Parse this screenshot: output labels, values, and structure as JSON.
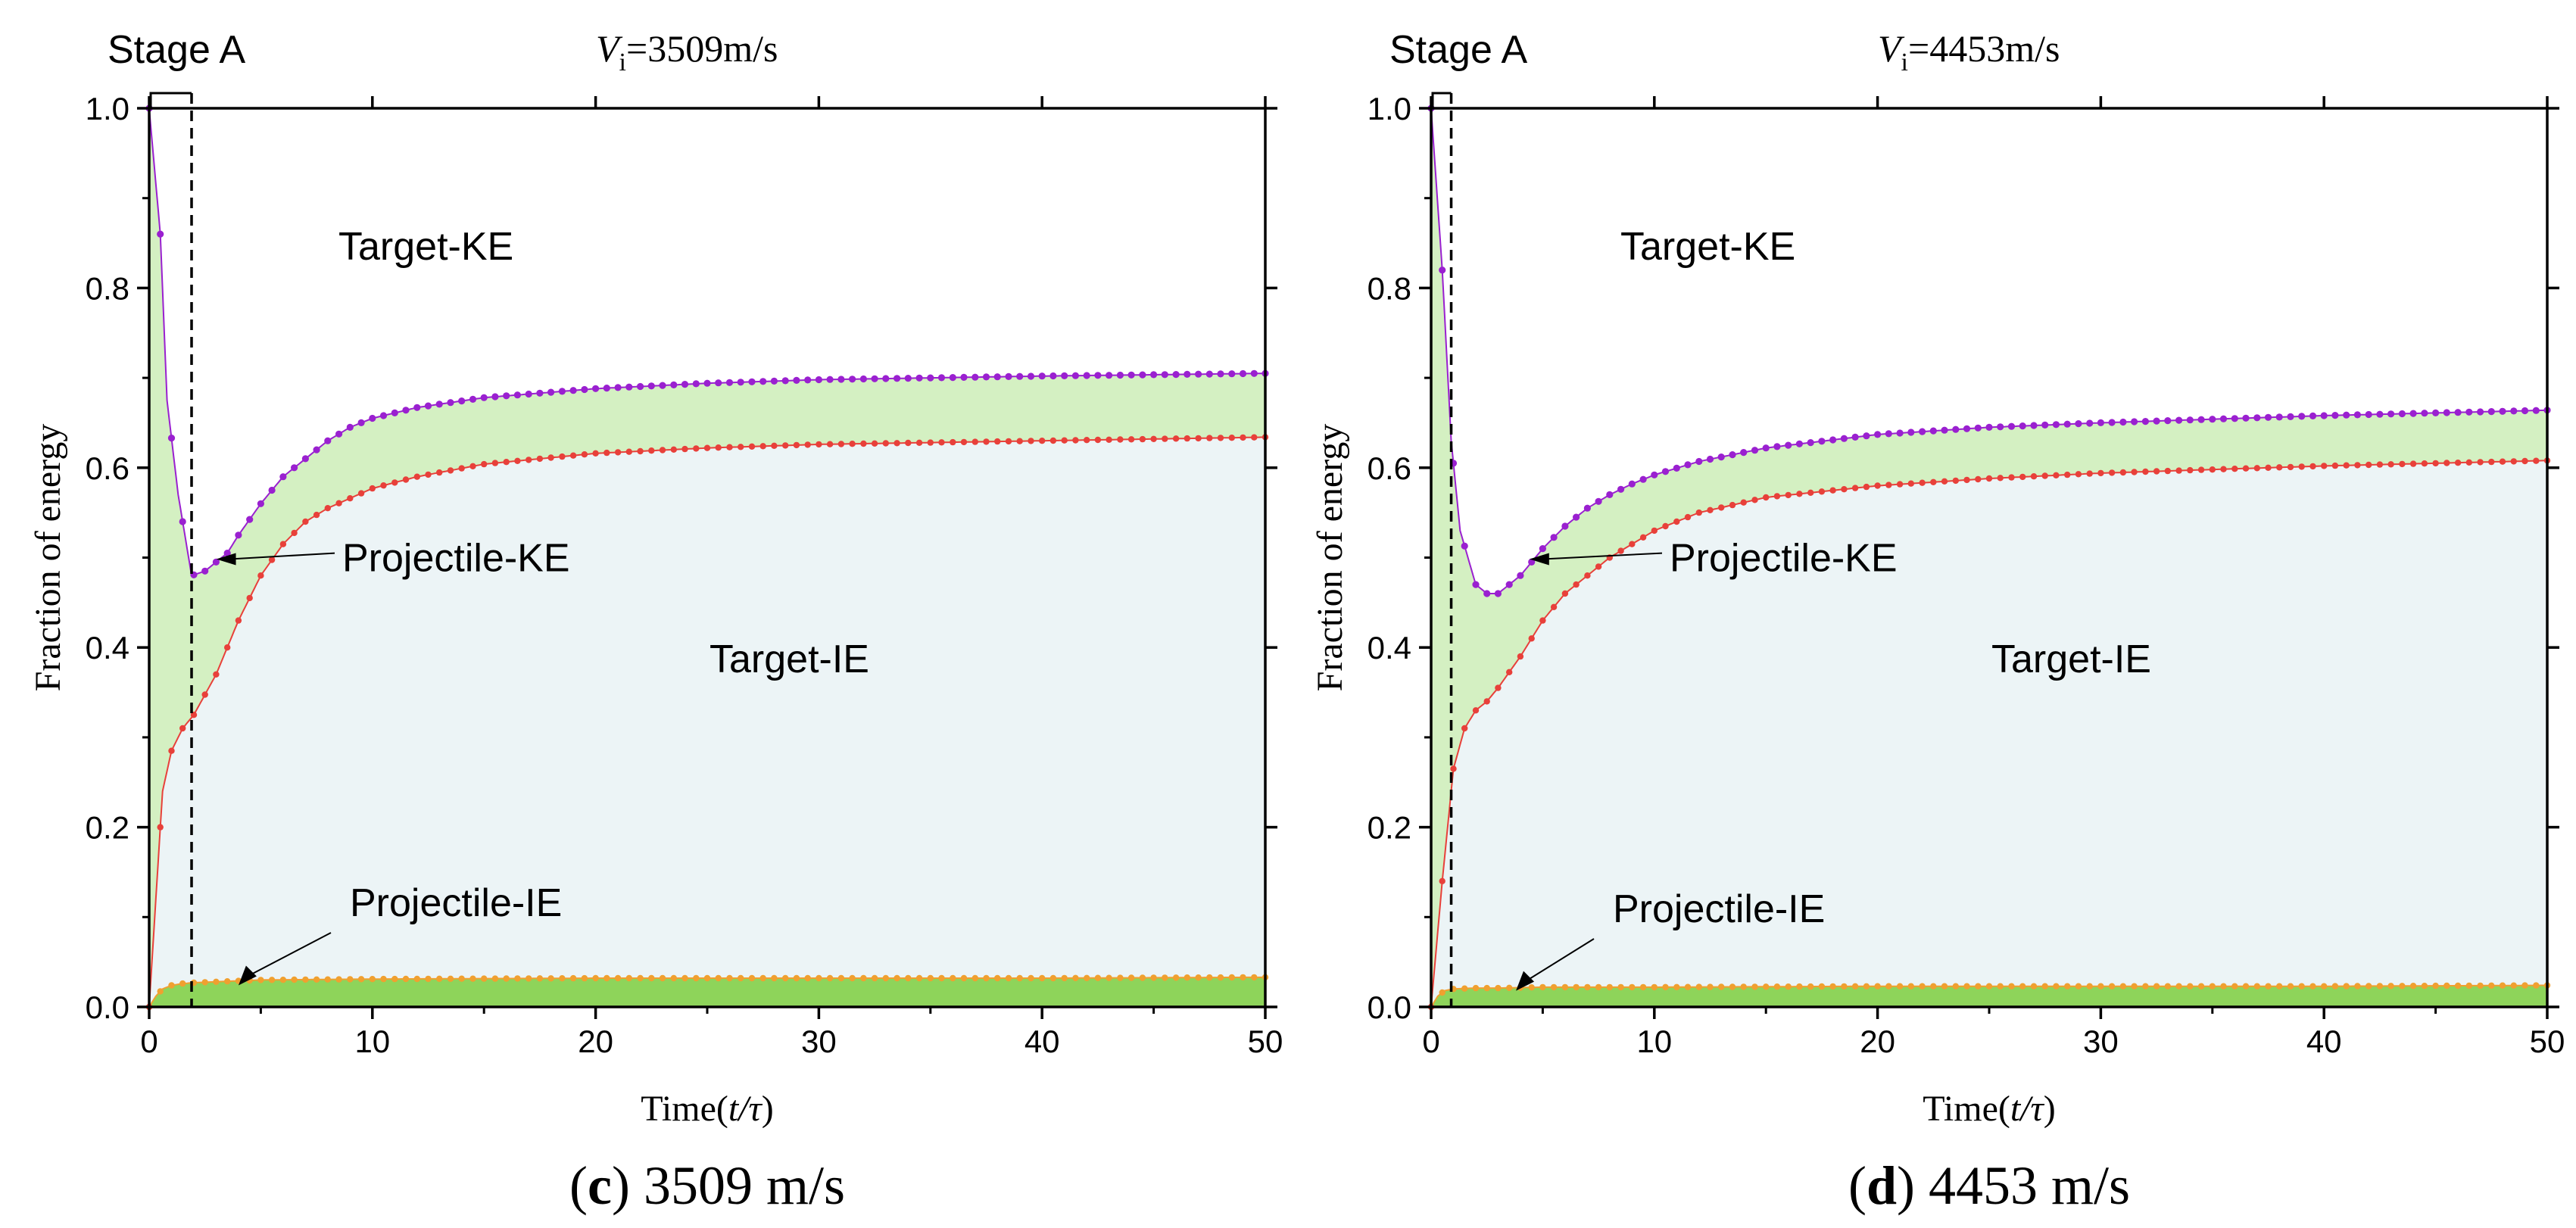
{
  "chart_data": [
    {
      "type": "area",
      "panel_id": "c",
      "caption_letter": "c",
      "caption_rest": " 3509 m/s",
      "velocity_label_v": "V",
      "velocity_label_sub": "i",
      "velocity_label_rest": "=3509m/s",
      "stage_label": "Stage A",
      "stage_end": 1.9,
      "xlabel": "Time(",
      "xlabel_italic": "t/τ",
      "xlabel_close": ")",
      "ylabel": "Fraction of energy",
      "xlim": [
        0,
        50
      ],
      "ylim": [
        0,
        1.0
      ],
      "xticks": [
        0,
        10,
        20,
        30,
        40,
        50
      ],
      "yticks": [
        "0.0",
        "0.2",
        "0.4",
        "0.6",
        "0.8",
        "1.0"
      ],
      "region_labels": {
        "target_ke": "Target-KE",
        "target_ie": "Target-IE",
        "projectile_ke": "Projectile-KE",
        "projectile_ie": "Projectile-IE"
      },
      "series": [
        {
          "name": "Projectile-IE upper bound",
          "color": "#f0a030",
          "x": [
            0,
            0.3,
            0.6,
            1,
            1.5,
            2,
            3,
            4,
            5,
            10,
            20,
            30,
            40,
            50
          ],
          "values": [
            0,
            0.012,
            0.02,
            0.024,
            0.026,
            0.027,
            0.028,
            0.029,
            0.03,
            0.031,
            0.032,
            0.032,
            0.032,
            0.033
          ]
        },
        {
          "name": "Target-IE upper bound",
          "color": "#e8403a",
          "x": [
            0,
            0.3,
            0.6,
            1,
            1.5,
            2,
            3,
            4,
            5,
            6,
            7,
            8,
            10,
            12,
            15,
            20,
            25,
            30,
            40,
            50
          ],
          "values": [
            0,
            0.12,
            0.24,
            0.285,
            0.31,
            0.325,
            0.37,
            0.43,
            0.48,
            0.515,
            0.54,
            0.555,
            0.577,
            0.59,
            0.604,
            0.616,
            0.622,
            0.626,
            0.63,
            0.634
          ]
        },
        {
          "name": "Projectile-KE upper bound",
          "color": "#9a20d0",
          "x": [
            0,
            0.5,
            0.8,
            1.3,
            1.9,
            2.5,
            3,
            3.5,
            4,
            5,
            6,
            7,
            8,
            9,
            10,
            12,
            15,
            20,
            25,
            30,
            40,
            50
          ],
          "values": [
            1.0,
            0.86,
            0.675,
            0.57,
            0.48,
            0.485,
            0.495,
            0.505,
            0.525,
            0.56,
            0.59,
            0.61,
            0.63,
            0.645,
            0.655,
            0.667,
            0.678,
            0.688,
            0.694,
            0.698,
            0.702,
            0.705
          ]
        }
      ]
    },
    {
      "type": "area",
      "panel_id": "d",
      "caption_letter": "d",
      "caption_rest": " 4453 m/s",
      "velocity_label_v": "V",
      "velocity_label_sub": "i",
      "velocity_label_rest": "=4453m/s",
      "stage_label": "Stage A",
      "stage_end": 0.9,
      "xlabel": "Time(",
      "xlabel_italic": "t/τ",
      "xlabel_close": ")",
      "ylabel": "Fraction of energy",
      "xlim": [
        0,
        50
      ],
      "ylim": [
        0,
        1.0
      ],
      "xticks": [
        0,
        10,
        20,
        30,
        40,
        50
      ],
      "yticks": [
        "0.0",
        "0.2",
        "0.4",
        "0.6",
        "0.8",
        "1.0"
      ],
      "region_labels": {
        "target_ke": "Target-KE",
        "target_ie": "Target-IE",
        "projectile_ke": "Projectile-KE",
        "projectile_ie": "Projectile-IE"
      },
      "series": [
        {
          "name": "Projectile-IE upper bound",
          "color": "#f0a030",
          "x": [
            0,
            0.3,
            0.6,
            1,
            2,
            3,
            5,
            10,
            20,
            30,
            40,
            50
          ],
          "values": [
            0,
            0.012,
            0.018,
            0.02,
            0.021,
            0.021,
            0.022,
            0.022,
            0.023,
            0.023,
            0.023,
            0.024
          ]
        },
        {
          "name": "Target-IE upper bound",
          "color": "#e8403a",
          "x": [
            0,
            0.5,
            1,
            1.5,
            2,
            2.5,
            3,
            4,
            5,
            6,
            7,
            8,
            10,
            12,
            15,
            20,
            25,
            30,
            40,
            50
          ],
          "values": [
            0,
            0.14,
            0.265,
            0.31,
            0.33,
            0.34,
            0.355,
            0.39,
            0.43,
            0.46,
            0.48,
            0.5,
            0.53,
            0.55,
            0.567,
            0.58,
            0.588,
            0.594,
            0.602,
            0.608
          ]
        },
        {
          "name": "Projectile-KE upper bound",
          "color": "#9a20d0",
          "x": [
            0,
            0.5,
            0.9,
            1.3,
            2,
            2.5,
            3,
            4,
            5,
            6,
            7,
            8,
            9,
            10,
            12,
            15,
            20,
            25,
            30,
            40,
            50
          ],
          "values": [
            1.0,
            0.82,
            0.63,
            0.53,
            0.47,
            0.46,
            0.46,
            0.48,
            0.51,
            0.535,
            0.555,
            0.57,
            0.582,
            0.592,
            0.607,
            0.622,
            0.637,
            0.645,
            0.65,
            0.658,
            0.664
          ]
        }
      ]
    }
  ],
  "colors": {
    "target_ke_fill": "#ffffff",
    "projectile_ke_fill": "#d4f0c2",
    "target_ie_fill": "#ecf4f6",
    "projectile_ie_fill": "#8ed45a",
    "axis": "#000000"
  }
}
